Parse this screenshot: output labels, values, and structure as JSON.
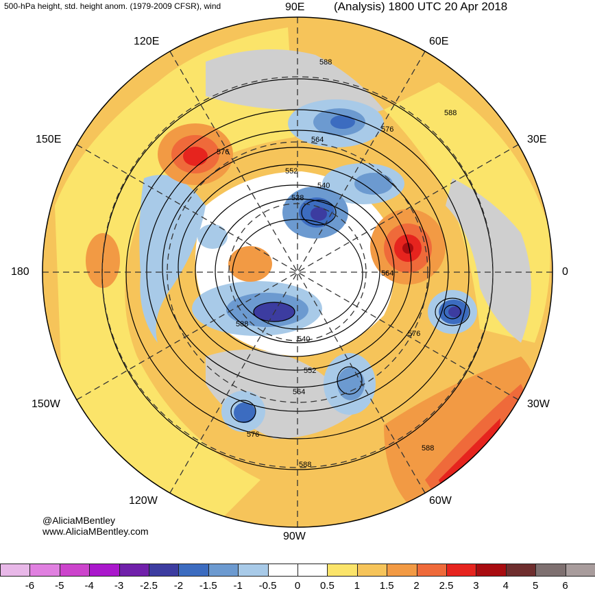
{
  "header": {
    "left_title": "500-hPa height, std. height anom. (1979-2009 CFSR), wind",
    "right_title": "(Analysis) 1800 UTC 20 Apr 2018"
  },
  "credits": {
    "handle": "@AliciaMBentley",
    "site": "www.AliciaMBentley.com"
  },
  "longitude_labels": {
    "e90": "90E",
    "e60": "60E",
    "e30": "30E",
    "zero": "0",
    "w30": "30W",
    "w60": "60W",
    "w90": "90W",
    "w120": "120W",
    "w150": "150W",
    "w180": "180",
    "e150": "150E",
    "e120": "120E"
  },
  "contour_labels": [
    "588",
    "588",
    "576",
    "564",
    "552",
    "540",
    "528",
    "576",
    "564",
    "588",
    "540",
    "552",
    "564",
    "576",
    "576",
    "588",
    "588"
  ],
  "colorbar": {
    "labels": [
      "-6",
      "-5",
      "-4",
      "-3",
      "-2.5",
      "-2",
      "-1.5",
      "-1",
      "-0.5",
      "0",
      "0.5",
      "1",
      "1.5",
      "2",
      "2.5",
      "3",
      "4",
      "5",
      "6"
    ],
    "colors": [
      "#e8b8e8",
      "#e080e0",
      "#cc44cc",
      "#aa18cc",
      "#7020aa",
      "#3c3ca0",
      "#3c6cc0",
      "#6c9ad0",
      "#a8cae8",
      "#ffffff",
      "#ffffff",
      "#fbe46a",
      "#f6c45a",
      "#f29a44",
      "#ef6a3a",
      "#e6241e",
      "#a80c10",
      "#6e2e2e",
      "#7e7070",
      "#a89c9c"
    ]
  },
  "colors": {
    "ocean_warm": "#f6c45a",
    "land_anom": "#cfcfcf",
    "contour": "#000000"
  }
}
